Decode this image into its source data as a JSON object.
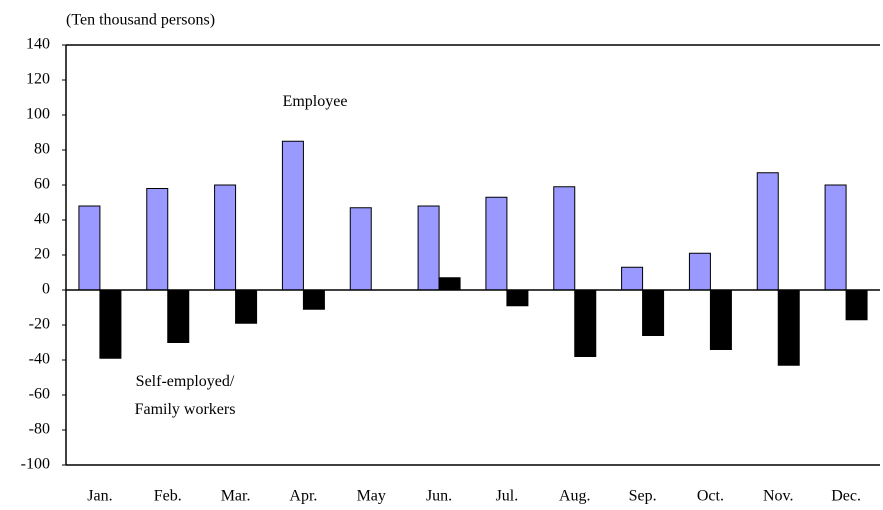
{
  "chart_data": {
    "type": "bar",
    "y_label": "(Ten thousand persons)",
    "categories": [
      "Jan.",
      "Feb.",
      "Mar.",
      "Apr.",
      "May",
      "Jun.",
      "Jul.",
      "Aug.",
      "Sep.",
      "Oct.",
      "Nov.",
      "Dec."
    ],
    "series": [
      {
        "name": "Employee",
        "color": "#9999ff",
        "values": [
          48,
          58,
          60,
          85,
          47,
          48,
          53,
          59,
          13,
          21,
          67,
          60
        ]
      },
      {
        "name": "Self-employed/\nFamily workers",
        "color": "#000000",
        "values": [
          -39,
          -30,
          -19,
          -11,
          0,
          7,
          -9,
          -38,
          -26,
          -34,
          -43,
          -17
        ]
      }
    ],
    "ylim": [
      -100,
      140
    ],
    "yticks": [
      -100,
      -80,
      -60,
      -40,
      -20,
      0,
      20,
      40,
      60,
      80,
      100,
      120,
      140
    ]
  }
}
